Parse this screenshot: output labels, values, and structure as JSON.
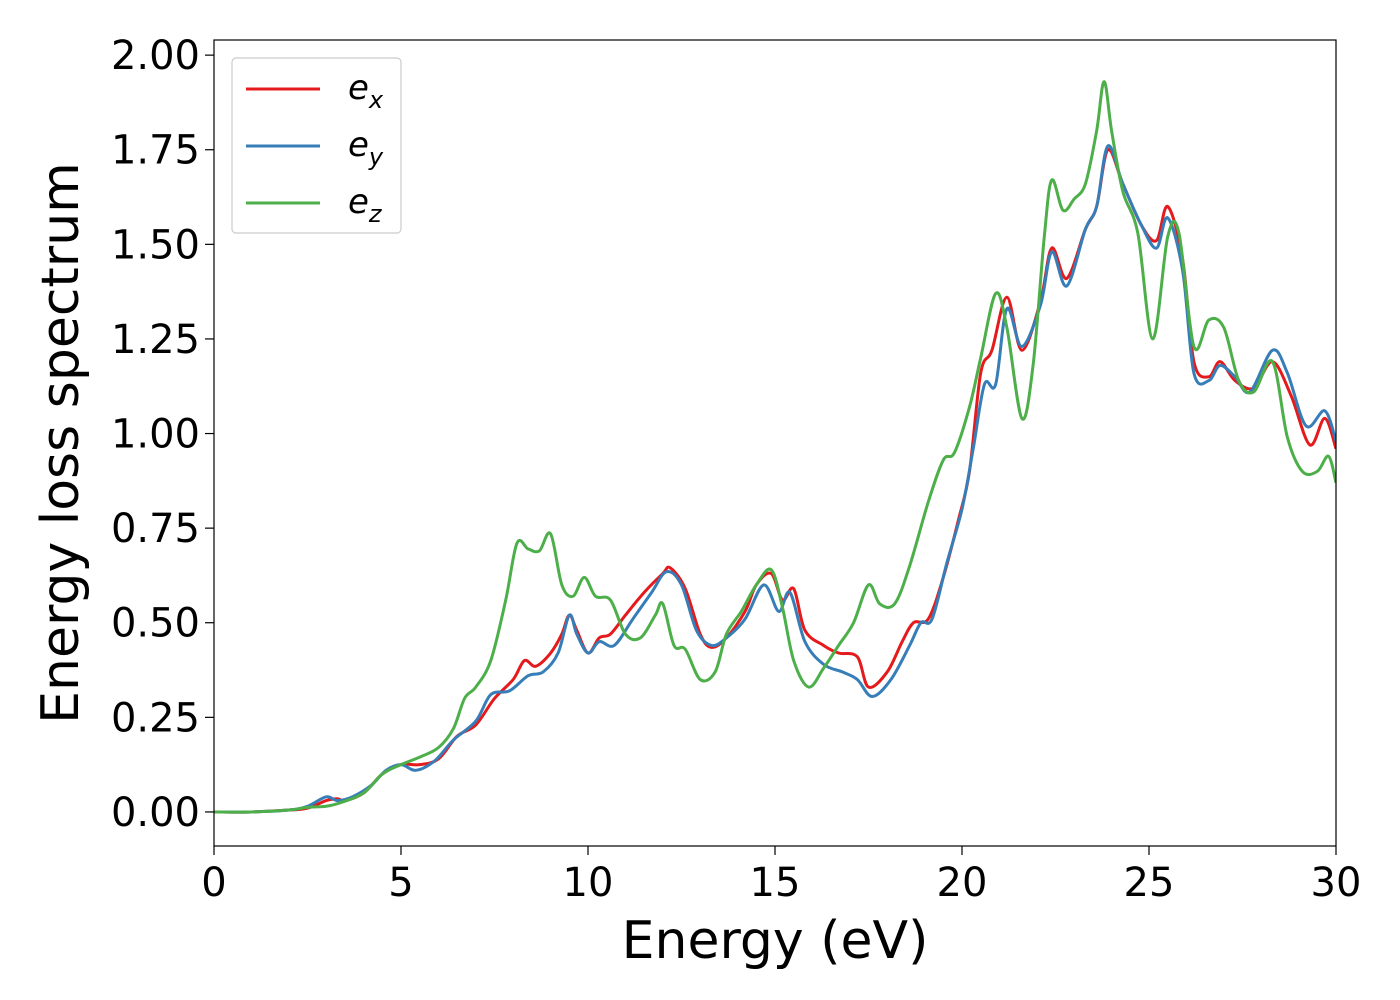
{
  "chart_data": {
    "type": "line",
    "xlabel": "Energy (eV)",
    "ylabel": "Energy loss spectrum",
    "xlim": [
      0,
      30
    ],
    "ylim": [
      -0.09,
      2.04
    ],
    "xticks": [
      0,
      5,
      10,
      15,
      20,
      25,
      30
    ],
    "yticks": [
      0.0,
      0.25,
      0.5,
      0.75,
      1.0,
      1.25,
      1.5,
      1.75,
      2.0
    ],
    "xtick_labels": [
      "0",
      "5",
      "10",
      "15",
      "20",
      "25",
      "30"
    ],
    "ytick_labels": [
      "0.00",
      "0.25",
      "0.50",
      "0.75",
      "1.00",
      "1.25",
      "1.50",
      "1.75",
      "2.00"
    ],
    "grid": false,
    "legend_position": "top-left",
    "series": [
      {
        "name": "e",
        "subscript": "x",
        "color": "#e41a1c",
        "points": [
          [
            0,
            0
          ],
          [
            1,
            0.0
          ],
          [
            2,
            0.005
          ],
          [
            2.5,
            0.01
          ],
          [
            3,
            0.03
          ],
          [
            3.3,
            0.035
          ],
          [
            3.5,
            0.03
          ],
          [
            4,
            0.05
          ],
          [
            4.5,
            0.1
          ],
          [
            5,
            0.125
          ],
          [
            5.5,
            0.125
          ],
          [
            6,
            0.14
          ],
          [
            6.5,
            0.2
          ],
          [
            7,
            0.23
          ],
          [
            7.5,
            0.3
          ],
          [
            8,
            0.35
          ],
          [
            8.3,
            0.4
          ],
          [
            8.6,
            0.385
          ],
          [
            9,
            0.42
          ],
          [
            9.3,
            0.47
          ],
          [
            9.5,
            0.52
          ],
          [
            9.7,
            0.48
          ],
          [
            10,
            0.42
          ],
          [
            10.3,
            0.46
          ],
          [
            10.6,
            0.47
          ],
          [
            11,
            0.52
          ],
          [
            11.5,
            0.58
          ],
          [
            12,
            0.63
          ],
          [
            12.2,
            0.645
          ],
          [
            12.6,
            0.59
          ],
          [
            13,
            0.47
          ],
          [
            13.3,
            0.435
          ],
          [
            13.7,
            0.46
          ],
          [
            14.2,
            0.53
          ],
          [
            14.5,
            0.6
          ],
          [
            14.9,
            0.63
          ],
          [
            15.2,
            0.56
          ],
          [
            15.5,
            0.59
          ],
          [
            15.8,
            0.48
          ],
          [
            16.3,
            0.44
          ],
          [
            16.7,
            0.42
          ],
          [
            17.2,
            0.41
          ],
          [
            17.5,
            0.33
          ],
          [
            18,
            0.37
          ],
          [
            18.4,
            0.45
          ],
          [
            18.7,
            0.5
          ],
          [
            19.1,
            0.51
          ],
          [
            19.5,
            0.62
          ],
          [
            19.9,
            0.77
          ],
          [
            20.2,
            0.9
          ],
          [
            20.5,
            1.16
          ],
          [
            20.8,
            1.22
          ],
          [
            21.2,
            1.36
          ],
          [
            21.6,
            1.22
          ],
          [
            22.1,
            1.35
          ],
          [
            22.4,
            1.49
          ],
          [
            22.8,
            1.41
          ],
          [
            23.3,
            1.54
          ],
          [
            23.6,
            1.6
          ],
          [
            23.9,
            1.75
          ],
          [
            24.3,
            1.66
          ],
          [
            24.8,
            1.55
          ],
          [
            25.2,
            1.51
          ],
          [
            25.5,
            1.6
          ],
          [
            25.9,
            1.46
          ],
          [
            26.2,
            1.19
          ],
          [
            26.6,
            1.15
          ],
          [
            26.9,
            1.19
          ],
          [
            27.3,
            1.14
          ],
          [
            27.8,
            1.12
          ],
          [
            28.3,
            1.19
          ],
          [
            28.8,
            1.1
          ],
          [
            29.3,
            0.97
          ],
          [
            29.7,
            1.04
          ],
          [
            30,
            0.96
          ]
        ]
      },
      {
        "name": "e",
        "subscript": "y",
        "color": "#377eb8",
        "points": [
          [
            0,
            0
          ],
          [
            1,
            0.0
          ],
          [
            2,
            0.005
          ],
          [
            2.5,
            0.015
          ],
          [
            3,
            0.04
          ],
          [
            3.3,
            0.03
          ],
          [
            3.7,
            0.04
          ],
          [
            4.2,
            0.07
          ],
          [
            4.6,
            0.11
          ],
          [
            5,
            0.125
          ],
          [
            5.4,
            0.11
          ],
          [
            5.9,
            0.135
          ],
          [
            6.4,
            0.19
          ],
          [
            7,
            0.24
          ],
          [
            7.4,
            0.31
          ],
          [
            7.9,
            0.32
          ],
          [
            8.4,
            0.36
          ],
          [
            8.8,
            0.37
          ],
          [
            9.2,
            0.42
          ],
          [
            9.5,
            0.52
          ],
          [
            9.7,
            0.47
          ],
          [
            10,
            0.42
          ],
          [
            10.3,
            0.45
          ],
          [
            10.7,
            0.44
          ],
          [
            11.2,
            0.51
          ],
          [
            11.7,
            0.58
          ],
          [
            12.1,
            0.635
          ],
          [
            12.5,
            0.6
          ],
          [
            12.9,
            0.48
          ],
          [
            13.3,
            0.44
          ],
          [
            13.7,
            0.46
          ],
          [
            14.2,
            0.51
          ],
          [
            14.7,
            0.6
          ],
          [
            15.1,
            0.53
          ],
          [
            15.4,
            0.58
          ],
          [
            15.8,
            0.45
          ],
          [
            16.3,
            0.39
          ],
          [
            16.8,
            0.37
          ],
          [
            17.2,
            0.35
          ],
          [
            17.6,
            0.305
          ],
          [
            18.1,
            0.35
          ],
          [
            18.6,
            0.44
          ],
          [
            18.9,
            0.5
          ],
          [
            19.2,
            0.51
          ],
          [
            19.6,
            0.66
          ],
          [
            20,
            0.8
          ],
          [
            20.3,
            0.96
          ],
          [
            20.6,
            1.13
          ],
          [
            20.9,
            1.13
          ],
          [
            21.2,
            1.33
          ],
          [
            21.6,
            1.23
          ],
          [
            22.1,
            1.34
          ],
          [
            22.4,
            1.48
          ],
          [
            22.8,
            1.39
          ],
          [
            23.3,
            1.54
          ],
          [
            23.6,
            1.6
          ],
          [
            23.9,
            1.76
          ],
          [
            24.3,
            1.66
          ],
          [
            24.8,
            1.55
          ],
          [
            25.2,
            1.49
          ],
          [
            25.5,
            1.57
          ],
          [
            25.9,
            1.43
          ],
          [
            26.2,
            1.16
          ],
          [
            26.6,
            1.14
          ],
          [
            26.9,
            1.18
          ],
          [
            27.3,
            1.15
          ],
          [
            27.7,
            1.11
          ],
          [
            28.3,
            1.22
          ],
          [
            28.7,
            1.16
          ],
          [
            29.2,
            1.02
          ],
          [
            29.7,
            1.06
          ],
          [
            30,
            0.98
          ]
        ]
      },
      {
        "name": "e",
        "subscript": "z",
        "color": "#4daf4a",
        "points": [
          [
            0,
            0
          ],
          [
            1,
            0.0
          ],
          [
            2,
            0.005
          ],
          [
            2.5,
            0.012
          ],
          [
            3,
            0.015
          ],
          [
            3.4,
            0.025
          ],
          [
            4,
            0.05
          ],
          [
            4.5,
            0.1
          ],
          [
            5,
            0.125
          ],
          [
            5.5,
            0.145
          ],
          [
            6,
            0.17
          ],
          [
            6.4,
            0.22
          ],
          [
            6.7,
            0.3
          ],
          [
            7,
            0.33
          ],
          [
            7.4,
            0.4
          ],
          [
            7.8,
            0.56
          ],
          [
            8.1,
            0.71
          ],
          [
            8.4,
            0.695
          ],
          [
            8.7,
            0.69
          ],
          [
            9,
            0.735
          ],
          [
            9.3,
            0.6
          ],
          [
            9.6,
            0.57
          ],
          [
            9.9,
            0.62
          ],
          [
            10.2,
            0.57
          ],
          [
            10.6,
            0.56
          ],
          [
            11,
            0.47
          ],
          [
            11.4,
            0.46
          ],
          [
            11.8,
            0.52
          ],
          [
            12,
            0.55
          ],
          [
            12.3,
            0.44
          ],
          [
            12.6,
            0.43
          ],
          [
            13,
            0.35
          ],
          [
            13.4,
            0.37
          ],
          [
            13.7,
            0.47
          ],
          [
            14.1,
            0.53
          ],
          [
            14.5,
            0.6
          ],
          [
            14.9,
            0.64
          ],
          [
            15.2,
            0.54
          ],
          [
            15.5,
            0.4
          ],
          [
            15.9,
            0.33
          ],
          [
            16.3,
            0.38
          ],
          [
            16.7,
            0.44
          ],
          [
            17.1,
            0.5
          ],
          [
            17.5,
            0.6
          ],
          [
            17.8,
            0.55
          ],
          [
            18.2,
            0.55
          ],
          [
            18.6,
            0.65
          ],
          [
            19.1,
            0.82
          ],
          [
            19.5,
            0.93
          ],
          [
            19.8,
            0.95
          ],
          [
            20.2,
            1.07
          ],
          [
            20.5,
            1.2
          ],
          [
            20.9,
            1.37
          ],
          [
            21.2,
            1.28
          ],
          [
            21.6,
            1.04
          ],
          [
            21.9,
            1.18
          ],
          [
            22.2,
            1.52
          ],
          [
            22.4,
            1.67
          ],
          [
            22.7,
            1.59
          ],
          [
            23,
            1.62
          ],
          [
            23.3,
            1.66
          ],
          [
            23.6,
            1.8
          ],
          [
            23.8,
            1.93
          ],
          [
            24,
            1.8
          ],
          [
            24.3,
            1.64
          ],
          [
            24.7,
            1.53
          ],
          [
            25.1,
            1.25
          ],
          [
            25.5,
            1.52
          ],
          [
            25.8,
            1.53
          ],
          [
            26.2,
            1.23
          ],
          [
            26.6,
            1.3
          ],
          [
            27,
            1.28
          ],
          [
            27.4,
            1.14
          ],
          [
            27.8,
            1.11
          ],
          [
            28.3,
            1.19
          ],
          [
            28.7,
            0.99
          ],
          [
            29.1,
            0.9
          ],
          [
            29.5,
            0.9
          ],
          [
            29.8,
            0.94
          ],
          [
            30,
            0.87
          ]
        ]
      }
    ]
  }
}
